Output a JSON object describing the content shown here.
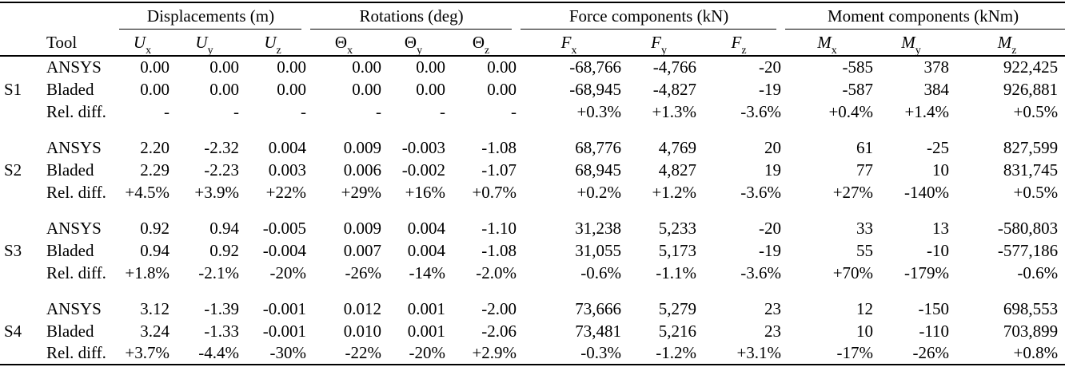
{
  "table": {
    "tool_header": "Tool",
    "groups": [
      {
        "label": "Displacements (m)",
        "cols": [
          {
            "base": "U",
            "sub": "x",
            "italic": true
          },
          {
            "base": "U",
            "sub": "y",
            "italic": true
          },
          {
            "base": "U",
            "sub": "z",
            "italic": true
          }
        ]
      },
      {
        "label": "Rotations (deg)",
        "cols": [
          {
            "base": "Θ",
            "sub": "x",
            "italic": false
          },
          {
            "base": "Θ",
            "sub": "y",
            "italic": false
          },
          {
            "base": "Θ",
            "sub": "z",
            "italic": false
          }
        ]
      },
      {
        "label": "Force components (kN)",
        "cols": [
          {
            "base": "F",
            "sub": "x",
            "italic": true
          },
          {
            "base": "F",
            "sub": "y",
            "italic": true
          },
          {
            "base": "F",
            "sub": "z",
            "italic": true
          }
        ]
      },
      {
        "label": "Moment components (kNm)",
        "cols": [
          {
            "base": "M",
            "sub": "x",
            "italic": true
          },
          {
            "base": "M",
            "sub": "y",
            "italic": true
          },
          {
            "base": "M",
            "sub": "z",
            "italic": true
          }
        ]
      }
    ],
    "blocks": [
      {
        "label": "S1",
        "rows": [
          {
            "tool": "ANSYS",
            "values": [
              "0.00",
              "0.00",
              "0.00",
              "0.00",
              "0.00",
              "0.00",
              "-68,766",
              "-4,766",
              "-20",
              "-585",
              "378",
              "922,425"
            ]
          },
          {
            "tool": "Bladed",
            "values": [
              "0.00",
              "0.00",
              "0.00",
              "0.00",
              "0.00",
              "0.00",
              "-68,945",
              "-4,827",
              "-19",
              "-587",
              "384",
              "926,881"
            ]
          },
          {
            "tool": "Rel. diff.",
            "values": [
              "-",
              "-",
              "-",
              "-",
              "-",
              "-",
              "+0.3%",
              "+1.3%",
              "-3.6%",
              "+0.4%",
              "+1.4%",
              "+0.5%"
            ]
          }
        ]
      },
      {
        "label": "S2",
        "rows": [
          {
            "tool": "ANSYS",
            "values": [
              "2.20",
              "-2.32",
              "0.004",
              "0.009",
              "-0.003",
              "-1.08",
              "68,776",
              "4,769",
              "20",
              "61",
              "-25",
              "827,599"
            ]
          },
          {
            "tool": "Bladed",
            "values": [
              "2.29",
              "-2.23",
              "0.003",
              "0.006",
              "-0.002",
              "-1.07",
              "68,945",
              "4,827",
              "19",
              "77",
              "10",
              "831,745"
            ]
          },
          {
            "tool": "Rel. diff.",
            "values": [
              "+4.5%",
              "+3.9%",
              "+22%",
              "+29%",
              "+16%",
              "+0.7%",
              "+0.2%",
              "+1.2%",
              "-3.6%",
              "+27%",
              "-140%",
              "+0.5%"
            ]
          }
        ]
      },
      {
        "label": "S3",
        "rows": [
          {
            "tool": "ANSYS",
            "values": [
              "0.92",
              "0.94",
              "-0.005",
              "0.009",
              "0.004",
              "-1.10",
              "31,238",
              "5,233",
              "-20",
              "33",
              "13",
              "-580,803"
            ]
          },
          {
            "tool": "Bladed",
            "values": [
              "0.94",
              "0.92",
              "-0.004",
              "0.007",
              "0.004",
              "-1.08",
              "31,055",
              "5,173",
              "-19",
              "55",
              "-10",
              "-577,186"
            ]
          },
          {
            "tool": "Rel. diff.",
            "values": [
              "+1.8%",
              "-2.1%",
              "-20%",
              "-26%",
              "-14%",
              "-2.0%",
              "-0.6%",
              "-1.1%",
              "-3.6%",
              "+70%",
              "-179%",
              "-0.6%"
            ]
          }
        ]
      },
      {
        "label": "S4",
        "rows": [
          {
            "tool": "ANSYS",
            "values": [
              "3.12",
              "-1.39",
              "-0.001",
              "0.012",
              "0.001",
              "-2.00",
              "73,666",
              "5,279",
              "23",
              "12",
              "-150",
              "698,553"
            ]
          },
          {
            "tool": "Bladed",
            "values": [
              "3.24",
              "-1.33",
              "-0.001",
              "0.010",
              "0.001",
              "-2.06",
              "73,481",
              "5,216",
              "23",
              "10",
              "-110",
              "703,899"
            ]
          },
          {
            "tool": "Rel. diff.",
            "values": [
              "+3.7%",
              "-4.4%",
              "-30%",
              "-22%",
              "-20%",
              "+2.9%",
              "-0.3%",
              "-1.2%",
              "+3.1%",
              "-17%",
              "-26%",
              "+0.8%"
            ]
          }
        ]
      }
    ]
  }
}
